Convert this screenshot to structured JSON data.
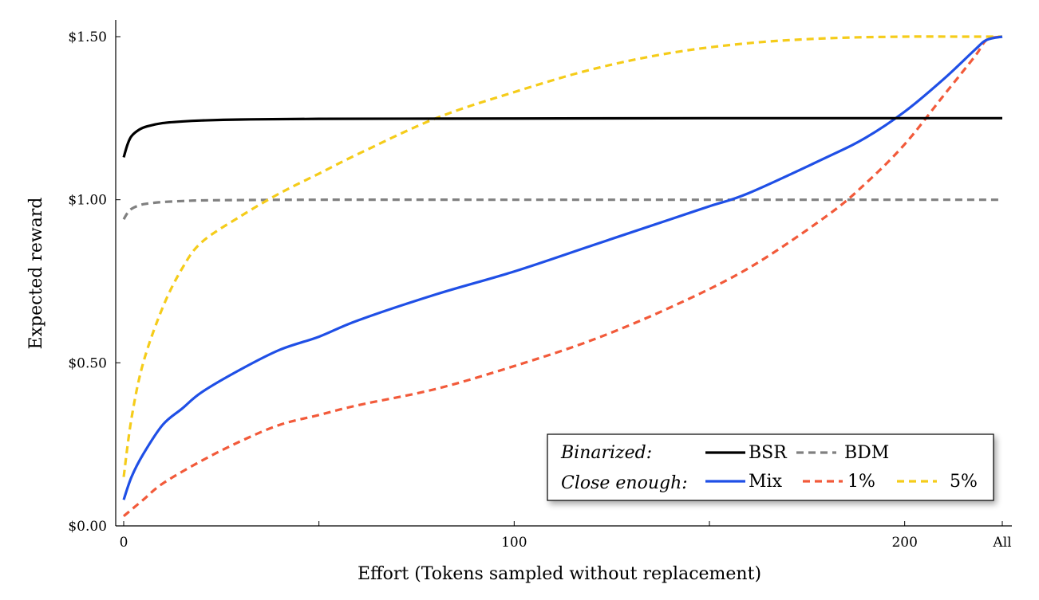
{
  "chart_data": {
    "type": "line",
    "xlabel": "Effort (Tokens sampled without replacement)",
    "ylabel": "Expected reward",
    "xlim": [
      0,
      225
    ],
    "ylim": [
      0,
      1.5
    ],
    "x_ticks": [
      {
        "value": 0,
        "label": "0"
      },
      {
        "value": 100,
        "label": "100"
      },
      {
        "value": 200,
        "label": "200"
      },
      {
        "value": 225,
        "label": "All"
      }
    ],
    "x_minor_ticks": [
      50,
      150
    ],
    "y_ticks": [
      {
        "value": 0,
        "label": "$0.00"
      },
      {
        "value": 0.5,
        "label": "$0.50"
      },
      {
        "value": 1.0,
        "label": "$1.00"
      },
      {
        "value": 1.5,
        "label": "$1.50"
      }
    ],
    "grid": false,
    "legend": {
      "position": "bottom-right",
      "group_binarized": "Binarized:",
      "group_close_enough": "Close enough:"
    },
    "series": [
      {
        "name": "BSR",
        "group": "binarized",
        "color": "#000000",
        "dash": "solid",
        "x": [
          0,
          1,
          2,
          4,
          6,
          10,
          15,
          20,
          30,
          50,
          100,
          150,
          200,
          225
        ],
        "y": [
          1.13,
          1.17,
          1.195,
          1.215,
          1.225,
          1.235,
          1.24,
          1.243,
          1.246,
          1.248,
          1.249,
          1.25,
          1.25,
          1.25
        ]
      },
      {
        "name": "BDM",
        "group": "binarized",
        "color": "#808080",
        "dash": "dashed",
        "x": [
          0,
          1,
          2,
          4,
          6,
          10,
          15,
          20,
          30,
          50,
          100,
          150,
          200,
          225
        ],
        "y": [
          0.94,
          0.96,
          0.972,
          0.983,
          0.988,
          0.993,
          0.996,
          0.998,
          0.999,
          1.0,
          1.0,
          1.0,
          1.0,
          1.0
        ]
      },
      {
        "name": "Mix",
        "group": "close_enough",
        "color": "#1f4fe6",
        "dash": "solid",
        "x": [
          0,
          2,
          5,
          10,
          15,
          20,
          30,
          40,
          50,
          60,
          80,
          100,
          120,
          140,
          150,
          160,
          180,
          190,
          200,
          210,
          218,
          221,
          225
        ],
        "y": [
          0.08,
          0.15,
          0.22,
          0.31,
          0.36,
          0.41,
          0.48,
          0.54,
          0.58,
          0.63,
          0.71,
          0.78,
          0.86,
          0.94,
          0.98,
          1.02,
          1.13,
          1.19,
          1.27,
          1.37,
          1.46,
          1.49,
          1.5
        ]
      },
      {
        "name": "1%",
        "group": "close_enough",
        "color": "#f25a3a",
        "dash": "dashed",
        "x": [
          0,
          5,
          10,
          20,
          30,
          40,
          50,
          60,
          80,
          100,
          120,
          140,
          160,
          180,
          190,
          200,
          210,
          218,
          221,
          225
        ],
        "y": [
          0.03,
          0.08,
          0.13,
          0.2,
          0.26,
          0.31,
          0.34,
          0.37,
          0.42,
          0.49,
          0.57,
          0.67,
          0.79,
          0.95,
          1.05,
          1.17,
          1.32,
          1.44,
          1.49,
          1.5
        ]
      },
      {
        "name": "5%",
        "group": "close_enough",
        "color": "#f5cc1a",
        "dash": "dashed",
        "x": [
          0,
          2,
          5,
          10,
          15,
          20,
          30,
          40,
          50,
          60,
          80,
          100,
          120,
          140,
          160,
          180,
          200,
          215,
          225
        ],
        "y": [
          0.15,
          0.33,
          0.5,
          0.67,
          0.79,
          0.87,
          0.95,
          1.02,
          1.08,
          1.14,
          1.25,
          1.33,
          1.4,
          1.45,
          1.48,
          1.495,
          1.5,
          1.5,
          1.5
        ]
      }
    ]
  }
}
